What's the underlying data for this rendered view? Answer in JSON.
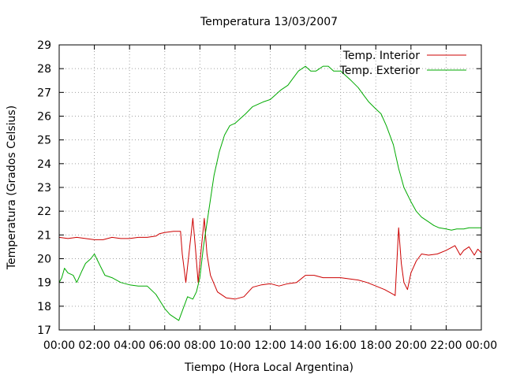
{
  "chart_data": {
    "type": "line",
    "title": "Temperatura 13/03/2007",
    "xlabel": "Tiempo (Hora Local Argentina)",
    "ylabel": "Temperatura (Grados Celsius)",
    "xlim": [
      0,
      24
    ],
    "ylim": [
      17,
      29
    ],
    "grid": true,
    "legend_position": "top-right",
    "x_ticks": [
      {
        "value": 0,
        "label": "00:00"
      },
      {
        "value": 2,
        "label": "02:00"
      },
      {
        "value": 4,
        "label": "04:00"
      },
      {
        "value": 6,
        "label": "06:00"
      },
      {
        "value": 8,
        "label": "08:00"
      },
      {
        "value": 10,
        "label": "10:00"
      },
      {
        "value": 12,
        "label": "12:00"
      },
      {
        "value": 14,
        "label": "14:00"
      },
      {
        "value": 16,
        "label": "16:00"
      },
      {
        "value": 18,
        "label": "18:00"
      },
      {
        "value": 20,
        "label": "20:00"
      },
      {
        "value": 22,
        "label": "22:00"
      },
      {
        "value": 24,
        "label": "00:00"
      }
    ],
    "y_ticks": [
      {
        "value": 17,
        "label": "17"
      },
      {
        "value": 18,
        "label": "18"
      },
      {
        "value": 19,
        "label": "19"
      },
      {
        "value": 20,
        "label": "20"
      },
      {
        "value": 21,
        "label": "21"
      },
      {
        "value": 22,
        "label": "22"
      },
      {
        "value": 23,
        "label": "23"
      },
      {
        "value": 24,
        "label": "24"
      },
      {
        "value": 25,
        "label": "25"
      },
      {
        "value": 26,
        "label": "26"
      },
      {
        "value": 27,
        "label": "27"
      },
      {
        "value": 28,
        "label": "28"
      },
      {
        "value": 29,
        "label": "29"
      }
    ],
    "series": [
      {
        "name": "Temp. Interior",
        "color": "#cc0000",
        "x": [
          0,
          0.5,
          1.0,
          1.5,
          2.0,
          2.5,
          3.0,
          3.5,
          4.0,
          4.5,
          5.0,
          5.5,
          5.7,
          6.0,
          6.5,
          6.9,
          7.0,
          7.2,
          7.35,
          7.6,
          7.75,
          7.9,
          8.05,
          8.25,
          8.4,
          8.6,
          9.0,
          9.5,
          10.0,
          10.5,
          11.0,
          11.5,
          12.0,
          12.5,
          13.0,
          13.5,
          14.0,
          14.5,
          15.0,
          15.5,
          16.0,
          16.5,
          17.0,
          17.5,
          18.0,
          18.5,
          19.0,
          19.1,
          19.3,
          19.45,
          19.6,
          19.8,
          20.0,
          20.3,
          20.6,
          21.0,
          21.5,
          22.0,
          22.5,
          22.8,
          23.0,
          23.3,
          23.6,
          23.8,
          24.0
        ],
        "y": [
          20.9,
          20.85,
          20.9,
          20.85,
          20.8,
          20.8,
          20.9,
          20.85,
          20.85,
          20.9,
          20.9,
          20.95,
          21.05,
          21.1,
          21.15,
          21.15,
          20.2,
          19.0,
          20.0,
          21.7,
          20.4,
          19.0,
          20.2,
          21.7,
          20.2,
          19.3,
          18.6,
          18.35,
          18.3,
          18.4,
          18.8,
          18.9,
          18.95,
          18.85,
          18.95,
          19.0,
          19.3,
          19.3,
          19.2,
          19.2,
          19.2,
          19.15,
          19.1,
          19.0,
          18.85,
          18.7,
          18.5,
          18.45,
          21.3,
          19.8,
          19.0,
          18.7,
          19.4,
          19.9,
          20.2,
          20.15,
          20.2,
          20.35,
          20.55,
          20.15,
          20.35,
          20.5,
          20.15,
          20.4,
          20.25
        ]
      },
      {
        "name": "Temp. Exterior",
        "color": "#00aa00",
        "x": [
          0,
          0.15,
          0.3,
          0.5,
          0.8,
          1.0,
          1.3,
          1.5,
          1.8,
          2.0,
          2.2,
          2.4,
          2.6,
          3.0,
          3.5,
          4.0,
          4.5,
          5.0,
          5.5,
          6.0,
          6.3,
          6.6,
          6.8,
          7.0,
          7.3,
          7.6,
          7.8,
          8.0,
          8.2,
          8.5,
          8.8,
          9.1,
          9.4,
          9.7,
          10.0,
          10.3,
          10.6,
          11.0,
          11.3,
          11.6,
          12.0,
          12.3,
          12.6,
          13.0,
          13.3,
          13.6,
          14.0,
          14.3,
          14.6,
          15.0,
          15.3,
          15.6,
          16.0,
          16.3,
          16.6,
          17.0,
          17.3,
          17.6,
          18.0,
          18.3,
          18.6,
          19.0,
          19.3,
          19.6,
          20.0,
          20.3,
          20.6,
          21.0,
          21.3,
          21.6,
          22.0,
          22.3,
          22.6,
          23.0,
          23.3,
          23.6,
          24.0
        ],
        "y": [
          19.0,
          19.2,
          19.6,
          19.4,
          19.3,
          19.0,
          19.5,
          19.8,
          20.0,
          20.2,
          19.9,
          19.6,
          19.3,
          19.2,
          19.0,
          18.9,
          18.85,
          18.85,
          18.5,
          17.9,
          17.65,
          17.5,
          17.4,
          17.8,
          18.4,
          18.3,
          18.6,
          19.2,
          20.5,
          22.0,
          23.5,
          24.5,
          25.2,
          25.6,
          25.7,
          25.9,
          26.1,
          26.4,
          26.5,
          26.6,
          26.7,
          26.9,
          27.1,
          27.3,
          27.6,
          27.9,
          28.1,
          27.9,
          27.9,
          28.1,
          28.1,
          27.9,
          27.9,
          27.7,
          27.5,
          27.2,
          26.9,
          26.6,
          26.3,
          26.1,
          25.6,
          24.8,
          23.8,
          23.0,
          22.4,
          22.0,
          21.75,
          21.55,
          21.4,
          21.3,
          21.25,
          21.2,
          21.25,
          21.25,
          21.3,
          21.3,
          21.3
        ]
      }
    ]
  }
}
